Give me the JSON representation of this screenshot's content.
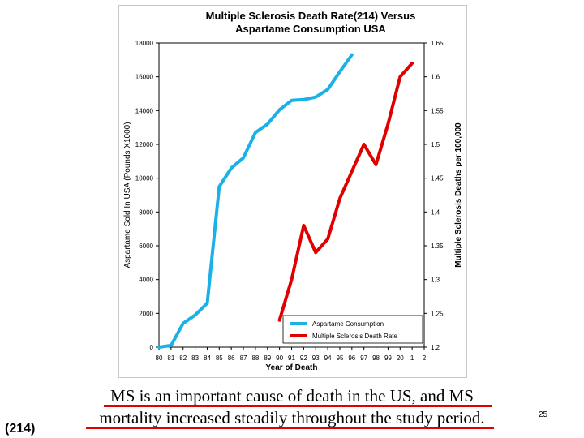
{
  "chart_data": {
    "type": "line",
    "title": "Multiple Sclerosis Death Rate(214) Versus Aspartame Consumption USA",
    "title_lines": [
      "Multiple Sclerosis Death Rate(214) Versus",
      "Aspartame Consumption USA"
    ],
    "xlabel": "Year of Death",
    "ylabel_left": "Aspartame Sold In USA  (Pounds X1000)",
    "ylabel_right": "Multiple Sclerosis Deaths per 100,000",
    "categories": [
      "80",
      "81",
      "82",
      "83",
      "84",
      "85",
      "86",
      "87",
      "88",
      "89",
      "90",
      "91",
      "92",
      "93",
      "94",
      "95",
      "96",
      "97",
      "98",
      "99",
      "20",
      "1",
      "2"
    ],
    "ylim_left": [
      0,
      18000
    ],
    "yticks_left": [
      0,
      2000,
      4000,
      6000,
      8000,
      10000,
      12000,
      14000,
      16000,
      18000
    ],
    "ylim_right": [
      1.2,
      1.65
    ],
    "yticks_right": [
      "1.2",
      "1.25",
      "1.3",
      "1.35",
      "1.4",
      "1.45",
      "1.5",
      "1.55",
      "1.6",
      "1.65"
    ],
    "grid": false,
    "legend_position": "bottom-right",
    "series": [
      {
        "name": "Aspartame Consumption",
        "axis": "left",
        "color": "#1ab0e8",
        "x": [
          "80",
          "81",
          "82",
          "83",
          "84",
          "85",
          "86",
          "87",
          "88",
          "89",
          "90",
          "91",
          "92",
          "93",
          "94",
          "95",
          "96"
        ],
        "values": [
          0,
          100,
          1400,
          1900,
          2600,
          9500,
          10600,
          11200,
          12700,
          13200,
          14050,
          14600,
          14650,
          14800,
          15250,
          16300,
          17300
        ]
      },
      {
        "name": "Multiple Sclerosis Death Rate",
        "axis": "right",
        "color": "#e00000",
        "x": [
          "90",
          "91",
          "92",
          "93",
          "94",
          "95",
          "96",
          "97",
          "98",
          "99",
          "20",
          "1"
        ],
        "values": [
          1.24,
          1.3,
          1.38,
          1.34,
          1.36,
          1.42,
          1.46,
          1.5,
          1.47,
          1.53,
          1.6,
          1.62
        ]
      }
    ]
  },
  "caption": {
    "line1": "MS is an important cause of death in the US, and MS",
    "line2": "mortality increased steadily throughout the study period."
  },
  "reference_label": "(214)",
  "slide_number": "25",
  "accent_color": "#e00000"
}
